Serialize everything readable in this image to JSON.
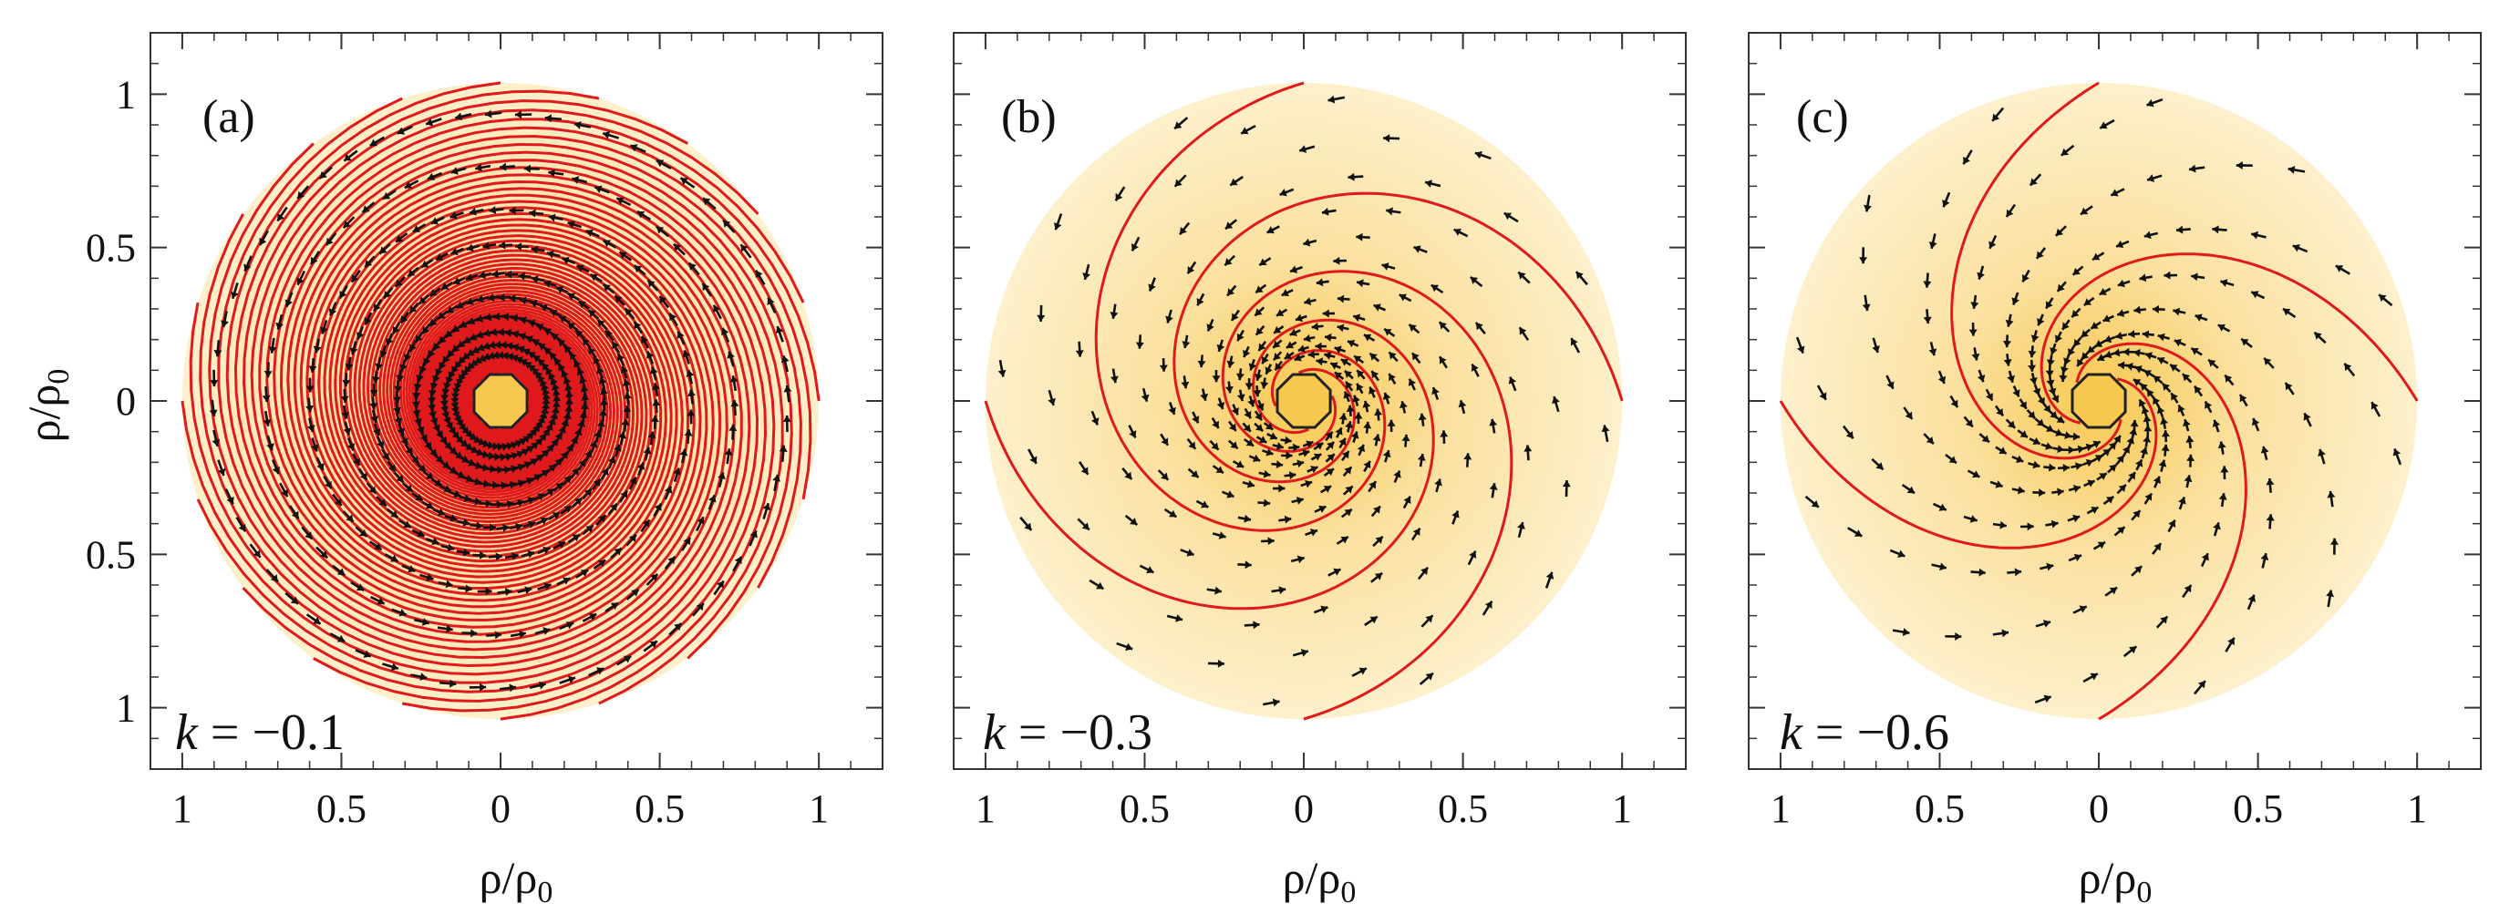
{
  "colors": {
    "disk_center": "#f7c850",
    "disk_mid": "#fbe1a0",
    "disk_edge": "#fdf0cc",
    "spiral_line": "#e0191c",
    "arrow": "#111111"
  },
  "shared": {
    "ylabel_main": "ρ/ρ",
    "ylabel_sub": "0",
    "xlabel_main": "ρ/ρ",
    "xlabel_sub": "0"
  },
  "chart_data": [
    {
      "type": "vector-field",
      "panel_label": "(a)",
      "k_var": "k",
      "k_text": " = −0.1",
      "k": -0.1,
      "spiral_arms": 20,
      "xlim": [
        -1.1,
        1.2
      ],
      "ylim": [
        -1.2,
        1.2
      ],
      "xticks": [
        {
          "v": -1,
          "label": "1"
        },
        {
          "v": -0.5,
          "label": "0.5"
        },
        {
          "v": 0,
          "label": "0"
        },
        {
          "v": 0.5,
          "label": "0.5"
        },
        {
          "v": 1,
          "label": "1"
        }
      ],
      "yticks": [
        {
          "v": 1,
          "label": "1"
        },
        {
          "v": 0.5,
          "label": "0.5"
        },
        {
          "v": 0,
          "label": "0"
        },
        {
          "v": -0.5,
          "label": "0.5"
        },
        {
          "v": -1,
          "label": "1"
        }
      ]
    },
    {
      "type": "vector-field",
      "panel_label": "(b)",
      "k_var": "k",
      "k_text": " = −0.3",
      "k": -0.3,
      "spiral_arms": 4,
      "xlim": [
        -1.1,
        1.2
      ],
      "ylim": [
        -1.2,
        1.2
      ],
      "xticks": [
        {
          "v": -1,
          "label": "1"
        },
        {
          "v": -0.5,
          "label": "0.5"
        },
        {
          "v": 0,
          "label": "0"
        },
        {
          "v": 0.5,
          "label": "0.5"
        },
        {
          "v": 1,
          "label": "1"
        }
      ],
      "yticks": []
    },
    {
      "type": "vector-field",
      "panel_label": "(c)",
      "k_var": "k",
      "k_text": " = −0.6",
      "k": -0.6,
      "spiral_arms": 4,
      "xlim": [
        -1.1,
        1.2
      ],
      "ylim": [
        -1.2,
        1.2
      ],
      "xticks": [
        {
          "v": -1,
          "label": "1"
        },
        {
          "v": -0.5,
          "label": "0.5"
        },
        {
          "v": 0,
          "label": "0"
        },
        {
          "v": 0.5,
          "label": "0.5"
        },
        {
          "v": 1,
          "label": "1"
        }
      ],
      "yticks": []
    }
  ]
}
